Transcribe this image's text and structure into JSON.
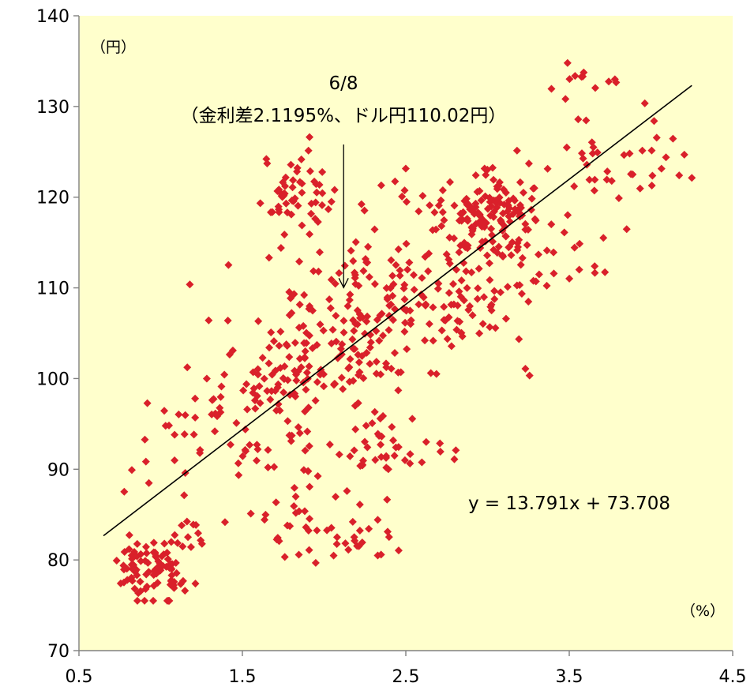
{
  "chart_data": {
    "type": "scatter",
    "title": "",
    "xlabel": "",
    "ylabel": "",
    "x_unit": "（%）",
    "y_unit": "（円）",
    "xlim": [
      0.5,
      4.5
    ],
    "ylim": [
      70,
      140
    ],
    "x_ticks": [
      0.5,
      1.5,
      2.5,
      3.5,
      4.5
    ],
    "x_tick_labels": [
      "0.5",
      "1.5",
      "2.5",
      "3.5",
      "4.5"
    ],
    "y_ticks": [
      70,
      80,
      90,
      100,
      110,
      120,
      130,
      140
    ],
    "y_tick_labels": [
      "70",
      "80",
      "90",
      "100",
      "110",
      "120",
      "130",
      "140"
    ],
    "grid": false,
    "legend": "none",
    "colors": {
      "background": "#FFFFCC",
      "points": "#D9202A",
      "trendline": "#000000"
    },
    "trendline": {
      "slope": 13.791,
      "intercept": 73.708,
      "x_range": [
        0.65,
        4.25
      ],
      "label": "y = 13.791x + 73.708"
    },
    "annotation": {
      "line1": "6/8",
      "line2": "（金利差2.1195%、ドル円110.02円）",
      "x": 2.1195,
      "y": 110.02
    },
    "clusters": [
      {
        "cx": 0.95,
        "cy": 79.0,
        "sx": 0.13,
        "sy": 1.8,
        "n": 90
      },
      {
        "cx": 1.15,
        "cy": 82.5,
        "sx": 0.1,
        "sy": 1.2,
        "n": 10
      },
      {
        "cx": 1.2,
        "cy": 93.0,
        "sx": 0.25,
        "sy": 4.0,
        "n": 40
      },
      {
        "cx": 1.7,
        "cy": 100.0,
        "sx": 0.2,
        "sy": 3.0,
        "n": 60
      },
      {
        "cx": 1.85,
        "cy": 83.5,
        "sx": 0.15,
        "sy": 2.3,
        "n": 25
      },
      {
        "cx": 2.2,
        "cy": 82.0,
        "sx": 0.12,
        "sy": 1.5,
        "n": 20
      },
      {
        "cx": 2.15,
        "cy": 92.0,
        "sx": 0.3,
        "sy": 3.5,
        "n": 50
      },
      {
        "cx": 1.85,
        "cy": 120.5,
        "sx": 0.12,
        "sy": 2.5,
        "n": 55
      },
      {
        "cx": 1.9,
        "cy": 109.0,
        "sx": 0.25,
        "sy": 4.0,
        "n": 40
      },
      {
        "cx": 2.05,
        "cy": 102.5,
        "sx": 0.25,
        "sy": 3.0,
        "n": 60
      },
      {
        "cx": 2.4,
        "cy": 108.0,
        "sx": 0.3,
        "sy": 4.0,
        "n": 80
      },
      {
        "cx": 2.8,
        "cy": 108.5,
        "sx": 0.25,
        "sy": 3.5,
        "n": 70
      },
      {
        "cx": 3.0,
        "cy": 118.5,
        "sx": 0.15,
        "sy": 2.0,
        "n": 120
      },
      {
        "cx": 3.2,
        "cy": 114.5,
        "sx": 0.25,
        "sy": 3.5,
        "n": 40
      },
      {
        "cx": 3.75,
        "cy": 125.0,
        "sx": 0.25,
        "sy": 4.0,
        "n": 45
      },
      {
        "cx": 3.6,
        "cy": 133.0,
        "sx": 0.1,
        "sy": 0.8,
        "n": 8
      },
      {
        "cx": 2.6,
        "cy": 119.0,
        "sx": 0.25,
        "sy": 2.5,
        "n": 15
      },
      {
        "cx": 2.5,
        "cy": 93.0,
        "sx": 0.1,
        "sy": 2.0,
        "n": 12
      }
    ]
  }
}
